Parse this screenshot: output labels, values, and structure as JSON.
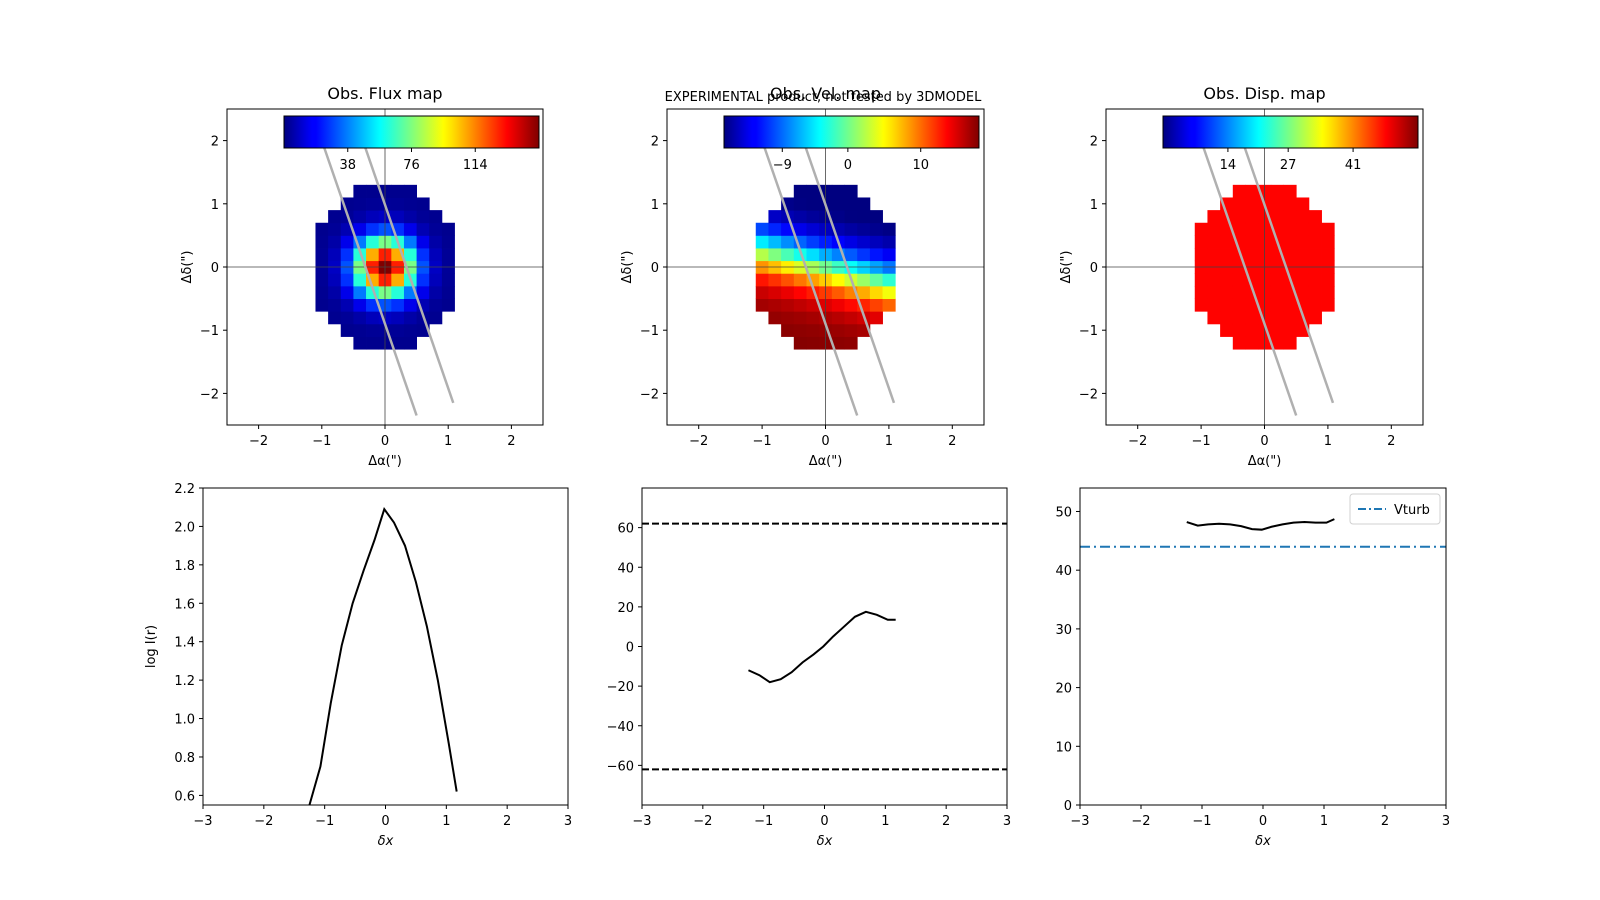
{
  "banner": "EXPERIMENTAL product, not tested by 3DMODEL",
  "banner_color": "#ff0000",
  "chart_data": [
    {
      "type": "heatmap",
      "title": "Obs. Flux map",
      "xlabel": "Δα(\")",
      "ylabel": "Δδ(\")",
      "xlim": [
        -2.5,
        2.5
      ],
      "ylim": [
        -2.5,
        2.5
      ],
      "xticks": [
        -2,
        -1,
        0,
        1,
        2
      ],
      "yticks": [
        -2,
        -1,
        0,
        1,
        2
      ],
      "colormap": "jet",
      "vrange": [
        0,
        152
      ],
      "colorbar_ticks": [
        38,
        76,
        114
      ],
      "slit_lines": [
        [
          [
            -1.0,
            2.0
          ],
          [
            0.5,
            -2.35
          ]
        ],
        [
          [
            -0.35,
            2.0
          ],
          [
            1.08,
            -2.15
          ]
        ]
      ],
      "field": "flux",
      "sigma": 0.33,
      "peak": 152,
      "base": 2
    },
    {
      "type": "heatmap",
      "title": "Obs. Vel. map",
      "xlabel": "Δα(\")",
      "ylabel": "Δδ(\")",
      "xlim": [
        -2.5,
        2.5
      ],
      "ylim": [
        -2.5,
        2.5
      ],
      "xticks": [
        -2,
        -1,
        0,
        1,
        2
      ],
      "yticks": [
        -2,
        -1,
        0,
        1,
        2
      ],
      "colormap": "jet",
      "vrange": [
        -17,
        18
      ],
      "colorbar_ticks": [
        -9,
        0,
        10
      ],
      "slit_lines": [
        [
          [
            -1.0,
            2.0
          ],
          [
            0.5,
            -2.35
          ]
        ],
        [
          [
            -0.35,
            2.0
          ],
          [
            1.08,
            -2.15
          ]
        ]
      ],
      "field": "velocity",
      "vmax": 18,
      "pa_deg": 15
    },
    {
      "type": "heatmap",
      "title": "Obs. Disp. map",
      "xlabel": "Δα(\")",
      "ylabel": "Δδ(\")",
      "xlim": [
        -2.5,
        2.5
      ],
      "ylim": [
        -2.5,
        2.5
      ],
      "xticks": [
        -2,
        -1,
        0,
        1,
        2
      ],
      "yticks": [
        -2,
        -1,
        0,
        1,
        2
      ],
      "colormap": "jet",
      "vrange": [
        0,
        55
      ],
      "colorbar_ticks": [
        14,
        27,
        41
      ],
      "slit_lines": [
        [
          [
            -1.0,
            2.0
          ],
          [
            0.5,
            -2.35
          ]
        ],
        [
          [
            -0.35,
            2.0
          ],
          [
            1.08,
            -2.15
          ]
        ]
      ],
      "field": "dispersion",
      "value": 48
    },
    {
      "type": "line",
      "xlabel": "δx",
      "ylabel": "log I(r)",
      "xlim": [
        -3,
        3
      ],
      "ylim": [
        0.55,
        2.2
      ],
      "xticks": [
        -3,
        -2,
        -1,
        0,
        1,
        2,
        3
      ],
      "yticks": [
        0.6,
        0.8,
        1.0,
        1.2,
        1.4,
        1.6,
        1.8,
        2.0,
        2.2
      ],
      "ytick_labels": [
        "0.6",
        "0.8",
        "1.0",
        "1.2",
        "1.4",
        "1.6",
        "1.8",
        "2.0",
        "2.2"
      ],
      "series": [
        {
          "x": [
            -1.25,
            -1.07,
            -0.9,
            -0.72,
            -0.54,
            -0.36,
            -0.18,
            -0.02,
            0.14,
            0.32,
            0.5,
            0.68,
            0.86,
            1.04,
            1.17
          ],
          "y": [
            0.55,
            0.75,
            1.08,
            1.38,
            1.6,
            1.77,
            1.93,
            2.09,
            2.02,
            1.9,
            1.71,
            1.48,
            1.2,
            0.87,
            0.62
          ],
          "style": "solid",
          "color": "#000000"
        }
      ]
    },
    {
      "type": "line",
      "xlabel": "δx",
      "ylabel": "",
      "xlim": [
        -3,
        3
      ],
      "ylim": [
        -80,
        80
      ],
      "xticks": [
        -3,
        -2,
        -1,
        0,
        1,
        2,
        3
      ],
      "yticks": [
        -60,
        -40,
        -20,
        0,
        20,
        40,
        60
      ],
      "ytick_labels": [
        "−60",
        "−40",
        "−20",
        "0",
        "20",
        "40",
        "60"
      ],
      "series": [
        {
          "x": [
            -1.25,
            -1.07,
            -0.9,
            -0.72,
            -0.54,
            -0.36,
            -0.18,
            -0.02,
            0.14,
            0.32,
            0.5,
            0.68,
            0.86,
            1.04,
            1.17
          ],
          "y": [
            -12,
            -14.5,
            -18,
            -16.5,
            -13,
            -8,
            -4,
            0,
            5,
            10,
            15,
            17.5,
            16,
            13.5,
            13.5
          ],
          "style": "solid",
          "color": "#000000"
        },
        {
          "x": [
            -3,
            3
          ],
          "y": [
            62,
            62
          ],
          "style": "dashed",
          "color": "#000000"
        },
        {
          "x": [
            -3,
            3
          ],
          "y": [
            -62,
            -62
          ],
          "style": "dashed",
          "color": "#000000"
        }
      ]
    },
    {
      "type": "line",
      "xlabel": "δx",
      "ylabel": "",
      "xlim": [
        -3,
        3
      ],
      "ylim": [
        0,
        54
      ],
      "xticks": [
        -3,
        -2,
        -1,
        0,
        1,
        2,
        3
      ],
      "yticks": [
        0,
        10,
        20,
        30,
        40,
        50
      ],
      "ytick_labels": [
        "0",
        "10",
        "20",
        "30",
        "40",
        "50"
      ],
      "legend": {
        "position": "top-right",
        "entries": [
          "Vturb"
        ]
      },
      "series": [
        {
          "x": [
            -1.25,
            -1.07,
            -0.9,
            -0.72,
            -0.54,
            -0.36,
            -0.18,
            -0.02,
            0.14,
            0.32,
            0.5,
            0.68,
            0.86,
            1.04,
            1.17
          ],
          "y": [
            48.2,
            47.6,
            47.8,
            47.9,
            47.8,
            47.5,
            47,
            46.9,
            47.4,
            47.8,
            48.1,
            48.2,
            48.1,
            48.1,
            48.7
          ],
          "style": "solid",
          "color": "#000000"
        },
        {
          "name": "Vturb",
          "x": [
            -3,
            3
          ],
          "y": [
            44,
            44
          ],
          "style": "dashdot",
          "color": "#1f77b4"
        }
      ]
    }
  ]
}
